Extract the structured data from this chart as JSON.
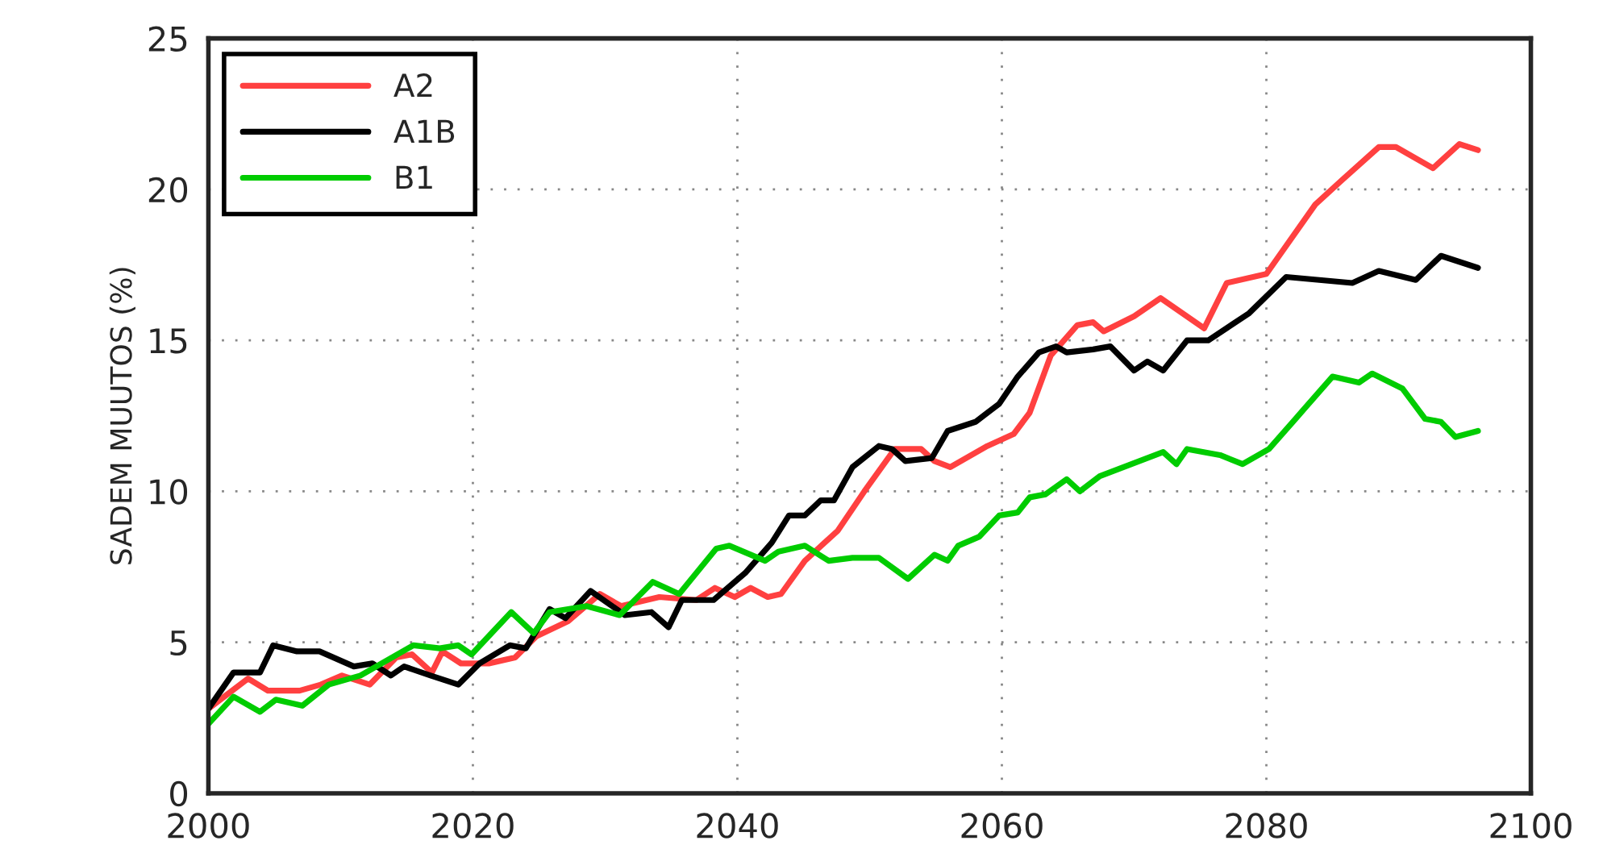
{
  "chart_data": {
    "type": "line",
    "ylabel": "SADEM MUUTOS (%)",
    "xlim": [
      2000,
      2100
    ],
    "xticks": [
      2000,
      2020,
      2040,
      2060,
      2080,
      2100
    ],
    "ylim": [
      0,
      25
    ],
    "yticks": [
      0,
      5,
      10,
      15,
      20,
      25
    ],
    "grid": true,
    "legend": "top left",
    "marker": "none",
    "line_style": "solid",
    "series": [
      {
        "name": "A2",
        "color": "#ff4040",
        "x": [
          2000,
          2003,
          2004.5,
          2006.9,
          2008.5,
          2010.1,
          2012.2,
          2014.2,
          2015.4,
          2016.9,
          2017.7,
          2019.1,
          2021.2,
          2023.2,
          2024.8,
          2027.2,
          2029.6,
          2031.2,
          2034.1,
          2036.9,
          2038.3,
          2039.8,
          2041,
          2042.3,
          2043.3,
          2045.1,
          2047.6,
          2049.6,
          2051.9,
          2053.9,
          2054.9,
          2056.1,
          2058.9,
          2060.9,
          2062.1,
          2063.7,
          2065.7,
          2066.9,
          2067.7,
          2070,
          2072,
          2075.3,
          2077,
          2080,
          2083.7,
          2085.7,
          2088.5,
          2089.8,
          2092.6,
          2094.6,
          2096
        ],
        "values": [
          2.8,
          3.8,
          3.4,
          3.4,
          3.6,
          3.9,
          3.6,
          4.5,
          4.6,
          4.0,
          4.7,
          4.3,
          4.3,
          4.5,
          5.2,
          5.7,
          6.6,
          6.2,
          6.5,
          6.4,
          6.8,
          6.5,
          6.8,
          6.5,
          6.6,
          7.7,
          8.7,
          10.0,
          11.4,
          11.4,
          11.0,
          10.8,
          11.5,
          11.9,
          12.6,
          14.5,
          15.5,
          15.6,
          15.3,
          15.8,
          16.4,
          15.4,
          16.9,
          17.2,
          19.5,
          20.3,
          21.4,
          21.4,
          20.7,
          21.5,
          21.3
        ]
      },
      {
        "name": "A1B",
        "color": "#000000",
        "x": [
          2000,
          2001.9,
          2003.9,
          2004.9,
          2006.7,
          2008.4,
          2011,
          2012.4,
          2013.8,
          2014.8,
          2016.8,
          2018.9,
          2020.5,
          2022.8,
          2024,
          2025.8,
          2027,
          2028.9,
          2031.5,
          2033.5,
          2034.8,
          2035.8,
          2038.2,
          2040.6,
          2042.6,
          2043.9,
          2045.1,
          2046.3,
          2047.3,
          2048.7,
          2050.7,
          2051.7,
          2052.7,
          2054.7,
          2055.9,
          2058,
          2059.8,
          2061.2,
          2062.8,
          2064.1,
          2064.9,
          2066.9,
          2068.2,
          2070,
          2071,
          2072.2,
          2074,
          2075.6,
          2078.7,
          2081.5,
          2084,
          2086.5,
          2088.5,
          2091.3,
          2093.2,
          2096
        ],
        "values": [
          2.8,
          4.0,
          4.0,
          4.9,
          4.7,
          4.7,
          4.2,
          4.3,
          3.9,
          4.2,
          3.9,
          3.6,
          4.3,
          4.9,
          4.8,
          6.1,
          5.8,
          6.7,
          5.9,
          6.0,
          5.5,
          6.4,
          6.4,
          7.3,
          8.3,
          9.2,
          9.2,
          9.7,
          9.7,
          10.8,
          11.5,
          11.4,
          11.0,
          11.1,
          12.0,
          12.3,
          12.9,
          13.8,
          14.6,
          14.8,
          14.6,
          14.7,
          14.8,
          14.0,
          14.3,
          14.0,
          15.0,
          15.0,
          15.9,
          17.1,
          17.0,
          16.9,
          17.3,
          17.0,
          17.8,
          17.4
        ]
      },
      {
        "name": "B1",
        "color": "#00cc00",
        "x": [
          2000,
          2001.9,
          2003.9,
          2005.1,
          2007.1,
          2009.1,
          2011.5,
          2012.7,
          2015.5,
          2017.5,
          2018.9,
          2019.9,
          2022.9,
          2024.6,
          2025.8,
          2028.6,
          2031.1,
          2033.6,
          2035.6,
          2038.4,
          2039.4,
          2042.1,
          2043.1,
          2045.1,
          2046.9,
          2048.7,
          2050.7,
          2052.9,
          2054.9,
          2055.9,
          2056.7,
          2058.3,
          2059.8,
          2061.2,
          2062.1,
          2063.3,
          2064.9,
          2065.9,
          2067.4,
          2070.4,
          2072.2,
          2073.2,
          2074,
          2076.5,
          2078.2,
          2080.2,
          2082.2,
          2085,
          2087,
          2088,
          2090.3,
          2092,
          2093.2,
          2094.3,
          2096
        ],
        "values": [
          2.3,
          3.2,
          2.7,
          3.1,
          2.9,
          3.6,
          3.9,
          4.2,
          4.9,
          4.8,
          4.9,
          4.6,
          6.0,
          5.3,
          6.0,
          6.2,
          5.9,
          7.0,
          6.6,
          8.1,
          8.2,
          7.7,
          8.0,
          8.2,
          7.7,
          7.8,
          7.8,
          7.1,
          7.9,
          7.7,
          8.2,
          8.5,
          9.2,
          9.3,
          9.8,
          9.9,
          10.4,
          10.0,
          10.5,
          11.0,
          11.3,
          10.9,
          11.4,
          11.2,
          10.9,
          11.4,
          12.4,
          13.8,
          13.6,
          13.9,
          13.4,
          12.4,
          12.3,
          11.8,
          12.0
        ]
      }
    ]
  }
}
